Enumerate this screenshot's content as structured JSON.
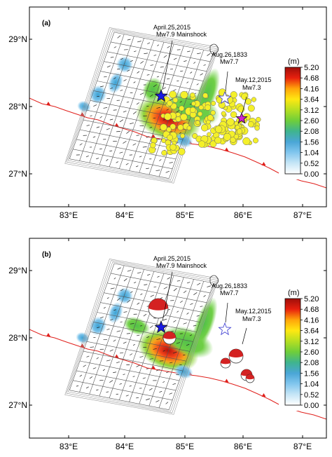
{
  "colors": {
    "trench": "#e0201c",
    "mainshock_star": "#1a1ae6",
    "aftershock_star": "#d020d0",
    "aftershocks": "#f4f02a",
    "historic_star": "#ffffff",
    "colorbar": [
      "#ffffff",
      "#c6e6f6",
      "#82c6ee",
      "#4aa6d6",
      "#3fb48e",
      "#6fce3a",
      "#b6df22",
      "#ffe812",
      "#ffa50a",
      "#ff6a08",
      "#e8200e",
      "#9e0f0a"
    ]
  },
  "panels": [
    {
      "label": "(a)",
      "x_ticks": [
        "83°E",
        "84°E",
        "85°E",
        "86°E",
        "87°E"
      ],
      "y_ticks": [
        "29°N",
        "28°N",
        "27°N"
      ],
      "annotations": {
        "mainshock_line1": "April.25,2015",
        "mainshock_line2": "Mw7.9 Mainshock",
        "historic_line1": "Aug.26,1833",
        "historic_line2": "Mw7.7",
        "aftershock_line1": "May.12,2015",
        "aftershock_line2": "Mw7.3"
      },
      "colorbar_unit": "(m)",
      "colorbar_ticks": [
        "5.20",
        "4.68",
        "4.16",
        "3.64",
        "3.12",
        "2.60",
        "2.08",
        "1.56",
        "1.04",
        "0.52",
        "0.00"
      ]
    },
    {
      "label": "(b)",
      "x_ticks": [
        "83°E",
        "84°E",
        "85°E",
        "86°E",
        "87°E"
      ],
      "y_ticks": [
        "29°N",
        "28°N",
        "27°N"
      ],
      "annotations": {
        "mainshock_line1": "April.25,2015",
        "mainshock_line2": "Mw7.9 Mainshock",
        "historic_line1": "Aug.26,1833",
        "historic_line2": "Mw7.7",
        "aftershock_line1": "May.12,2015",
        "aftershock_line2": "Mw7.3"
      },
      "colorbar_unit": "(m)",
      "colorbar_ticks": [
        "5.20",
        "4.68",
        "4.16",
        "3.64",
        "3.12",
        "2.60",
        "2.08",
        "1.56",
        "1.04",
        "0.52",
        "0.00"
      ]
    }
  ]
}
